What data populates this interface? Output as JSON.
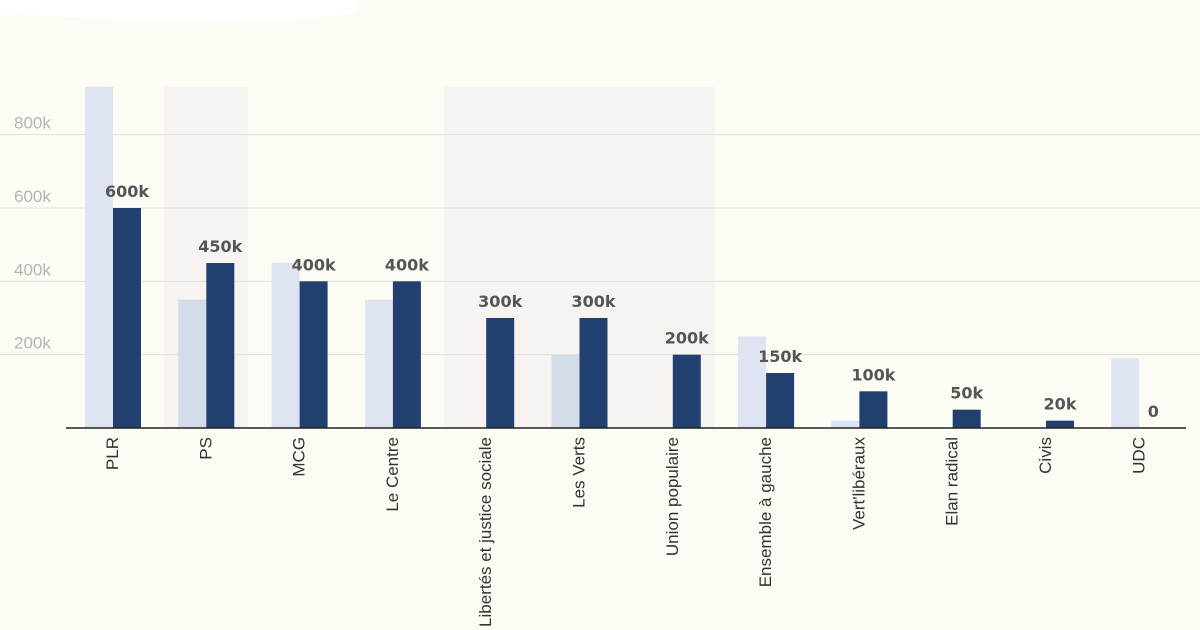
{
  "chart_data": {
    "type": "bar",
    "categories": [
      "PLR",
      "PS",
      "MCG",
      "Le Centre",
      "Libertés et justice sociale",
      "Les Verts",
      "Union populaire",
      "Ensemble à gauche",
      "Vert'libéraux",
      "Elan radical",
      "Civis",
      "UDC"
    ],
    "series": [
      {
        "values": [
          930000,
          350000,
          450000,
          350000,
          0,
          200000,
          0,
          250000,
          20000,
          0,
          0,
          190000
        ]
      },
      {
        "values": [
          600000,
          450000,
          400000,
          400000,
          300000,
          300000,
          200000,
          150000,
          100000,
          50000,
          20000,
          0
        ]
      }
    ],
    "data_labels": [
      "600k",
      "450k",
      "400k",
      "400k",
      "300k",
      "300k",
      "200k",
      "150k",
      "100k",
      "50k",
      "20k",
      "0"
    ],
    "y_ticks": [
      {
        "value": 200000,
        "label": "200k"
      },
      {
        "value": 400000,
        "label": "400k"
      },
      {
        "value": 600000,
        "label": "600k"
      },
      {
        "value": 800000,
        "label": "800k"
      }
    ],
    "highlight_bands": [
      {
        "from": "PS",
        "to": "PS"
      },
      {
        "from": "Libertés et justice sociale",
        "to": "Union populaire"
      }
    ],
    "ylim": [
      0,
      930000
    ],
    "grid": true,
    "colors": {
      "series_light": "#dfe4f2",
      "series_dark": "#21406f",
      "band": "#f7f3f1",
      "light_in_band": "#d3dce9",
      "gridline": "#e2e2dc",
      "axis": "#222222",
      "background": "#fcfcf5"
    }
  }
}
